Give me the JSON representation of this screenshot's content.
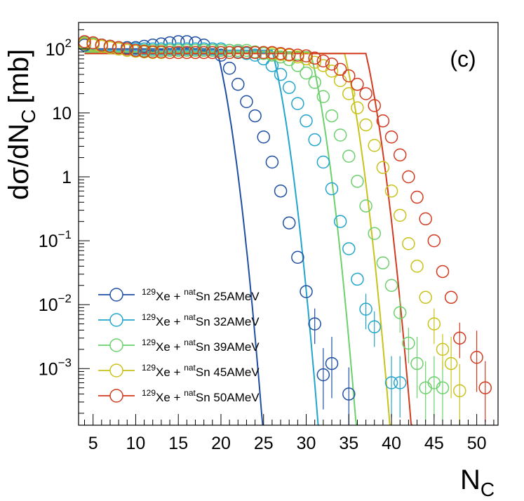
{
  "chart_data": {
    "type": "scatter",
    "panel_label": "(c)",
    "xlabel": {
      "main": "N",
      "sub": "C"
    },
    "ylabel": {
      "main": "dσ/dN",
      "sub": "C",
      "unit": "[mb]"
    },
    "xlim": [
      3.3,
      52.5
    ],
    "ylim": [
      0.00013,
      260
    ],
    "yscale": "log",
    "x_ticks": [
      5,
      10,
      15,
      20,
      25,
      30,
      35,
      40,
      45,
      50
    ],
    "x_tick_labels": [
      "5",
      "10",
      "15",
      "20",
      "25",
      "30",
      "35",
      "40",
      "45",
      "50"
    ],
    "y_ticks": [
      {
        "value": 100,
        "base": "10",
        "exp": "2"
      },
      {
        "value": 10,
        "base": "10",
        "exp": ""
      },
      {
        "value": 1,
        "base": "1",
        "exp": ""
      },
      {
        "value": 0.1,
        "base": "10",
        "exp": "−1"
      },
      {
        "value": 0.01,
        "base": "10",
        "exp": "−2"
      },
      {
        "value": 0.001,
        "base": "10",
        "exp": "−3"
      }
    ],
    "series": [
      {
        "name": "25AMeV",
        "label_sup1": "129",
        "label_el1": "Xe + ",
        "label_sup2": "nat",
        "label_el2": "Sn 25AMeV",
        "color": "#1f4fa3",
        "x": [
          4,
          5,
          6,
          7,
          8,
          9,
          10,
          11,
          12,
          13,
          14,
          15,
          16,
          17,
          18,
          19,
          20,
          21,
          22,
          23,
          24,
          25,
          26,
          27,
          28,
          29,
          30,
          31,
          32,
          33,
          35
        ],
        "y": [
          115,
          120,
          115,
          110,
          105,
          105,
          105,
          110,
          115,
          120,
          125,
          130,
          130,
          125,
          115,
          100,
          80,
          50,
          28,
          15,
          9,
          4.2,
          1.7,
          0.6,
          0.19,
          0.055,
          0.016,
          0.005,
          0.0008,
          0.0012,
          0.0004
        ],
        "fit": {
          "plateau": 100,
          "x0": 19.5,
          "a": 1.2,
          "b": 0.245
        }
      },
      {
        "name": "32AMeV",
        "label_sup1": "129",
        "label_el1": "Xe + ",
        "label_sup2": "nat",
        "label_el2": "Sn 32AMeV",
        "color": "#22a5cc",
        "x": [
          4,
          5,
          6,
          7,
          8,
          9,
          10,
          11,
          12,
          13,
          14,
          15,
          16,
          17,
          18,
          19,
          20,
          21,
          22,
          23,
          24,
          25,
          26,
          27,
          28,
          29,
          30,
          31,
          32,
          33,
          34,
          35,
          36,
          37,
          38,
          40,
          41
        ],
        "y": [
          125,
          120,
          115,
          110,
          105,
          100,
          100,
          100,
          100,
          100,
          100,
          100,
          100,
          100,
          100,
          100,
          100,
          95,
          90,
          85,
          80,
          70,
          55,
          40,
          25,
          14,
          7.5,
          3.8,
          1.7,
          0.65,
          0.2,
          0.075,
          0.025,
          0.0085,
          0.0045,
          0.0006,
          0.0006
        ],
        "fit": {
          "plateau": 95,
          "x0": 26,
          "a": 1.2,
          "b": 0.24
        }
      },
      {
        "name": "39AMeV",
        "label_sup1": "129",
        "label_el1": "Xe + ",
        "label_sup2": "nat",
        "label_el2": "Sn 39AMeV",
        "color": "#6cd06c",
        "x": [
          4,
          5,
          6,
          7,
          8,
          9,
          10,
          11,
          12,
          13,
          14,
          15,
          16,
          17,
          18,
          19,
          20,
          21,
          22,
          23,
          24,
          25,
          26,
          27,
          28,
          29,
          30,
          31,
          32,
          33,
          34,
          35,
          36,
          37,
          38,
          39,
          40,
          41,
          42,
          43,
          44,
          45,
          46
        ],
        "y": [
          125,
          120,
          115,
          110,
          105,
          100,
          95,
          95,
          95,
          95,
          95,
          95,
          95,
          95,
          95,
          95,
          95,
          95,
          95,
          95,
          90,
          85,
          80,
          75,
          68,
          55,
          42,
          30,
          18,
          9,
          4.5,
          2.1,
          0.85,
          0.35,
          0.13,
          0.045,
          0.02,
          0.0075,
          0.0025,
          0.0012,
          0.0005,
          0.0006,
          0.0005
        ],
        "fit": {
          "plateau": 90,
          "x0": 30.5,
          "a": 1.25,
          "b": 0.235
        }
      },
      {
        "name": "45AMeV",
        "label_sup1": "129",
        "label_el1": "Xe + ",
        "label_sup2": "nat",
        "label_el2": "Sn 45AMeV",
        "color": "#c9c21a",
        "x": [
          4,
          5,
          6,
          7,
          8,
          9,
          10,
          11,
          12,
          13,
          14,
          15,
          16,
          17,
          18,
          19,
          20,
          21,
          22,
          23,
          24,
          25,
          26,
          27,
          28,
          29,
          30,
          31,
          32,
          33,
          34,
          35,
          36,
          37,
          38,
          39,
          40,
          41,
          42,
          43,
          44,
          45,
          46,
          47,
          48
        ],
        "y": [
          120,
          115,
          110,
          105,
          100,
          95,
          92,
          90,
          88,
          88,
          88,
          88,
          88,
          88,
          88,
          88,
          88,
          88,
          88,
          88,
          88,
          88,
          85,
          82,
          80,
          75,
          70,
          62,
          55,
          45,
          32,
          20,
          12,
          6.5,
          3.1,
          1.4,
          0.6,
          0.25,
          0.09,
          0.04,
          0.013,
          0.005,
          0.002,
          0.0012,
          0.00045
        ],
        "fit": {
          "plateau": 85,
          "x0": 34.5,
          "a": 1.3,
          "b": 0.23
        }
      },
      {
        "name": "50AMeV",
        "label_sup1": "129",
        "label_el1": "Xe + ",
        "label_sup2": "nat",
        "label_el2": "Sn 50AMeV",
        "color": "#d23a20",
        "x": [
          4,
          5,
          6,
          7,
          8,
          9,
          10,
          11,
          12,
          13,
          14,
          15,
          16,
          17,
          18,
          19,
          20,
          21,
          22,
          23,
          24,
          25,
          26,
          27,
          28,
          29,
          30,
          31,
          32,
          33,
          34,
          35,
          36,
          37,
          38,
          39,
          40,
          41,
          42,
          43,
          44,
          45,
          46,
          47,
          48,
          50,
          51
        ],
        "y": [
          130,
          125,
          115,
          110,
          105,
          100,
          95,
          92,
          90,
          90,
          88,
          88,
          88,
          88,
          88,
          88,
          88,
          88,
          88,
          88,
          88,
          88,
          88,
          85,
          82,
          80,
          78,
          72,
          65,
          58,
          48,
          38,
          28,
          20,
          13,
          7.5,
          4.2,
          2.2,
          1.0,
          0.48,
          0.22,
          0.1,
          0.033,
          0.013,
          0.003,
          0.0015,
          0.0005
        ],
        "fit": {
          "plateau": 85,
          "x0": 37,
          "a": 1.35,
          "b": 0.22
        }
      }
    ]
  }
}
